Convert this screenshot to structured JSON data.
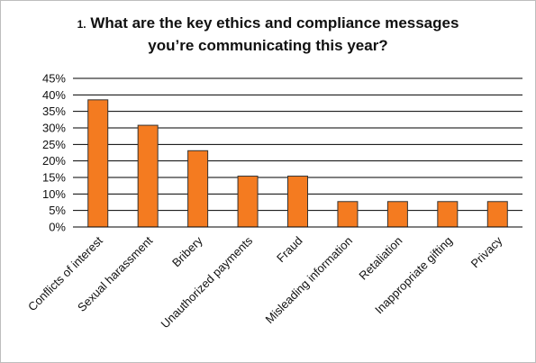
{
  "chart_data": {
    "type": "bar",
    "title_number": "1.",
    "title_line1": "What are the key ethics and compliance messages",
    "title_line2": "you’re communicating this year?",
    "categories": [
      "Conflicts of interest",
      "Sexual harassment",
      "Bribery",
      "Unauthorized payments",
      "Fraud",
      "Misleading information",
      "Retaliation",
      "Inappropriate gifting",
      "Privacy"
    ],
    "values": [
      38.5,
      30.8,
      23.1,
      15.4,
      15.4,
      7.7,
      7.7,
      7.7,
      7.7
    ],
    "ylim": [
      0,
      45
    ],
    "yticks": [
      "0%",
      "5%",
      "10%",
      "15%",
      "20%",
      "25%",
      "30%",
      "35%",
      "40%",
      "45%"
    ],
    "grid": true,
    "legend": "none",
    "bar_color": "#f47b20",
    "bar_stroke": "#333333",
    "grid_color": "#000000"
  }
}
